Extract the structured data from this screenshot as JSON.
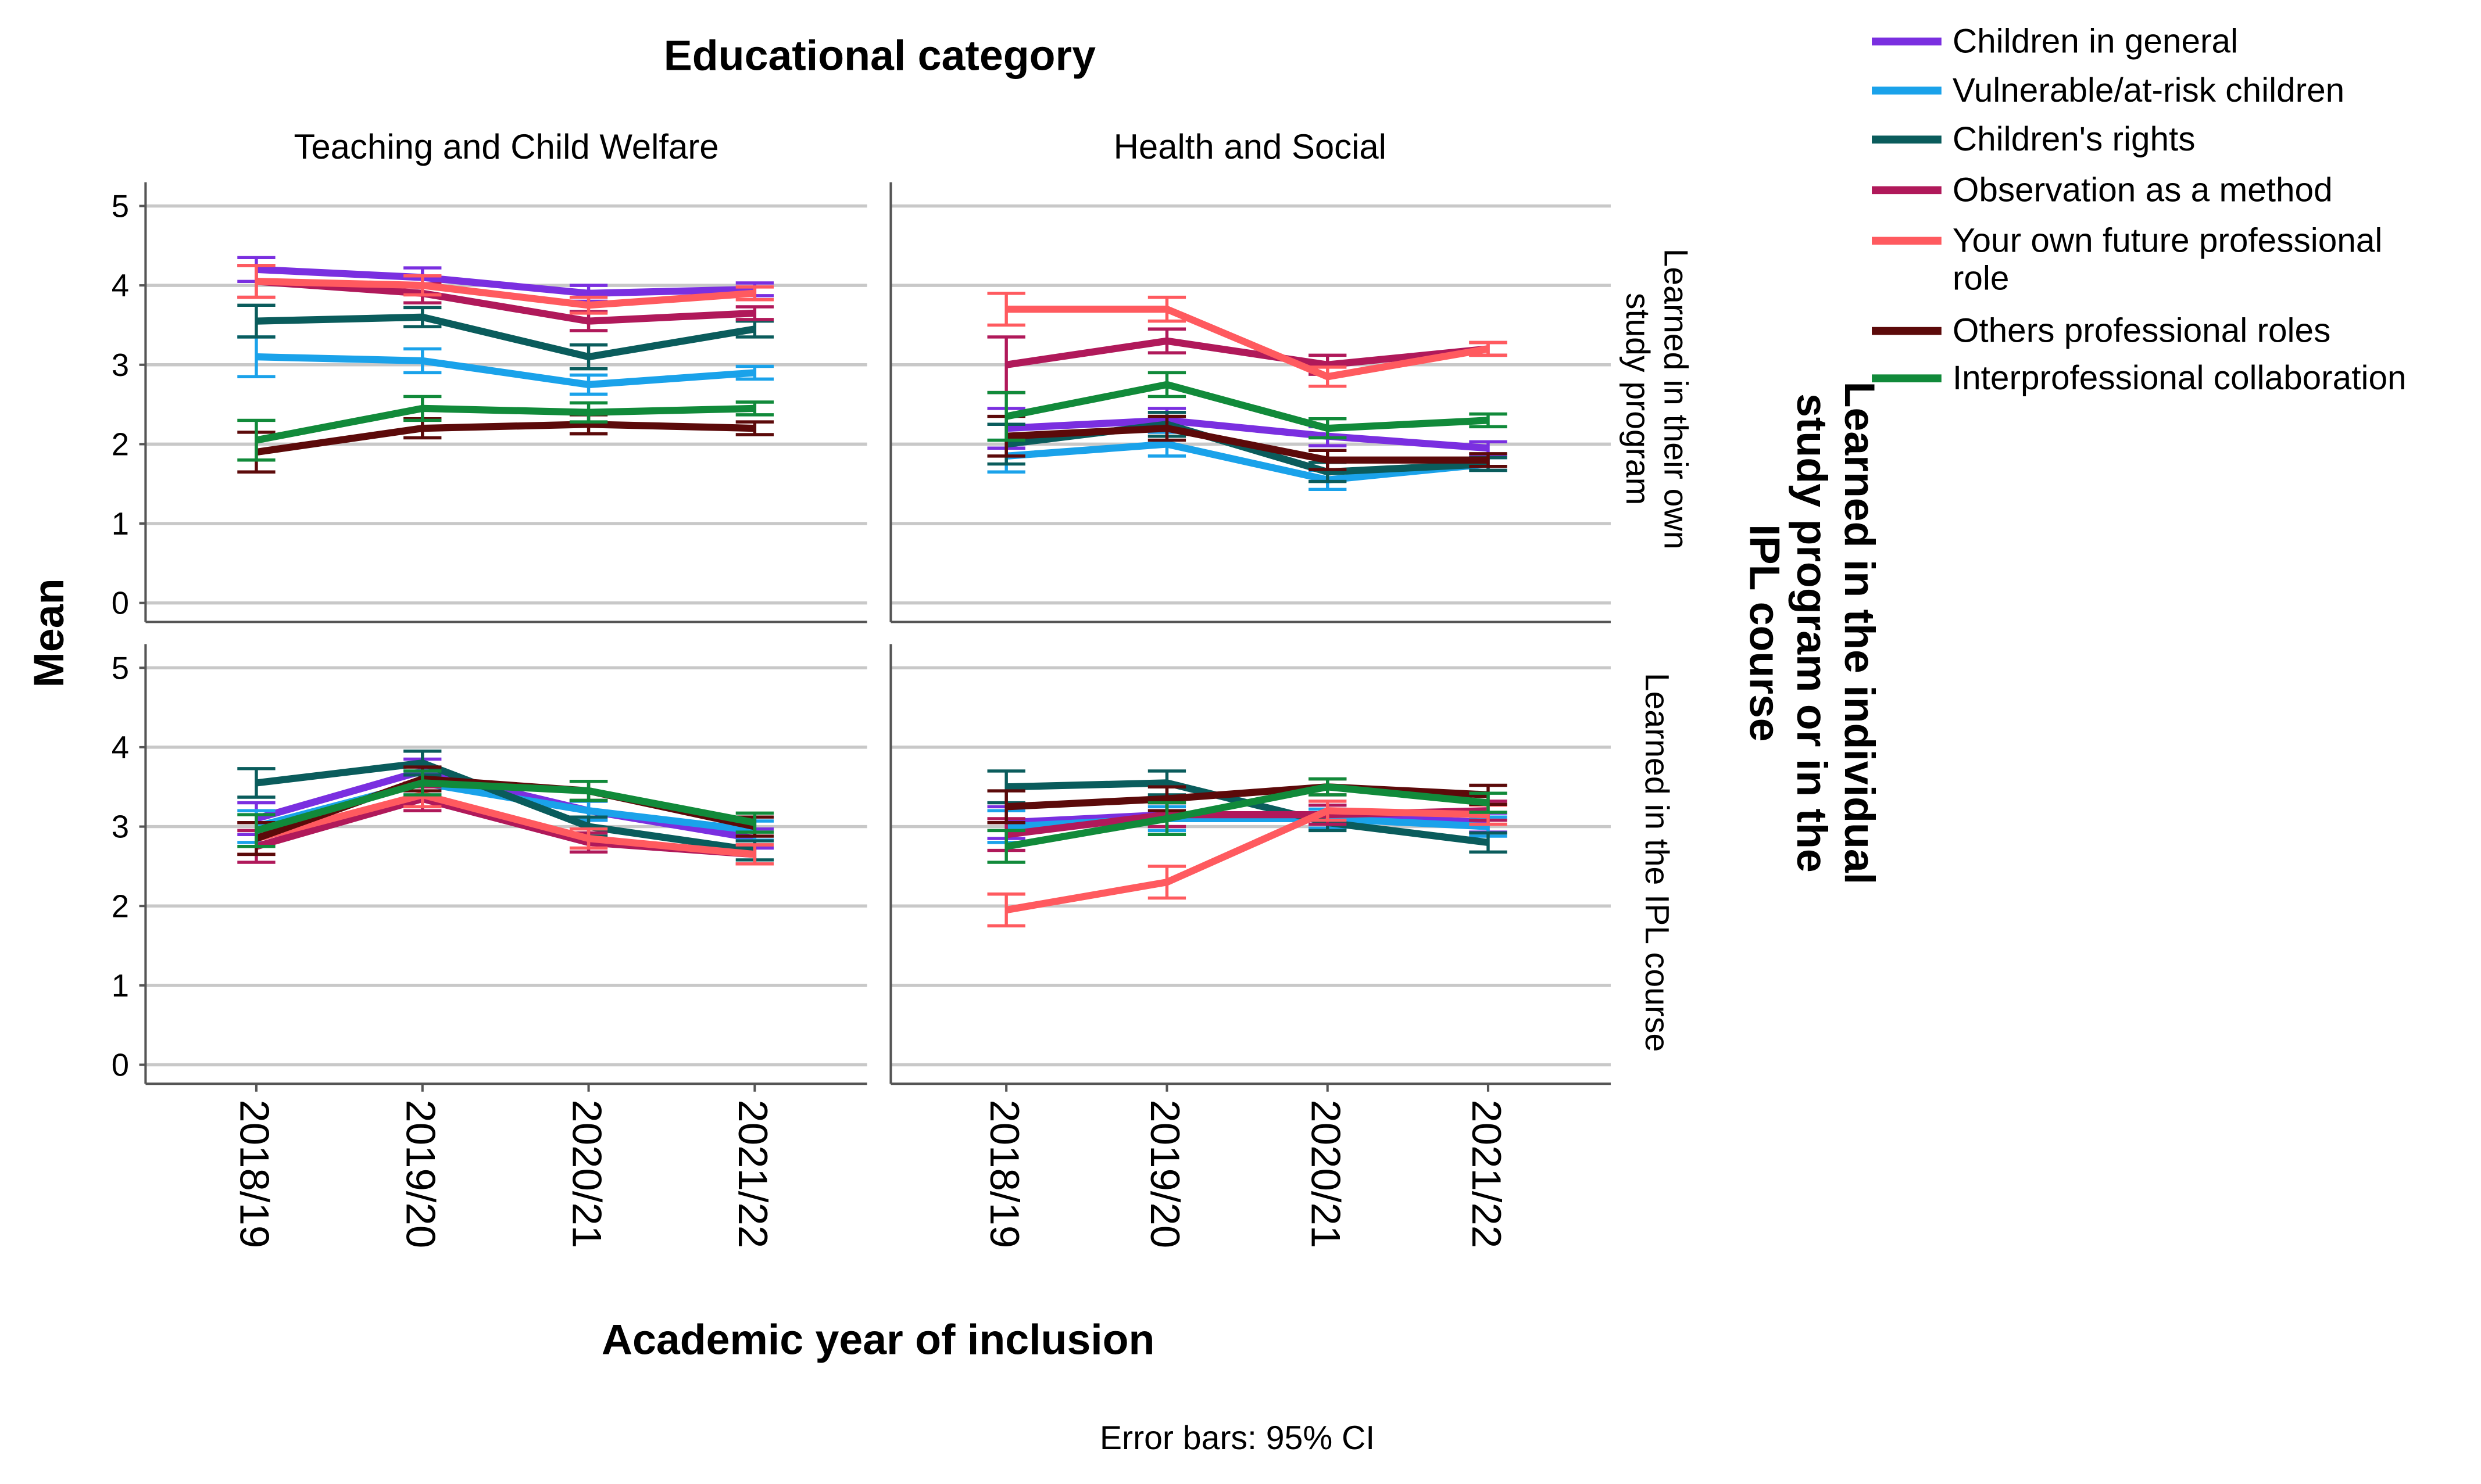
{
  "chart_data": {
    "type": "line",
    "title": "Educational category",
    "xlabel": "Academic year of inclusion",
    "ylabel": "Mean",
    "row_axis_title": "Learned in the individual study program or in the IPL course",
    "footnote": "Error bars: 95% CI",
    "ylim": [
      0,
      5
    ],
    "yticks": [
      0,
      1,
      2,
      3,
      4,
      5
    ],
    "grid": true,
    "legend_position": "top-right",
    "categories": [
      "2018/19",
      "2019/20",
      "2020/21",
      "2021/22"
    ],
    "columns": [
      "Teaching and Child Welfare",
      "Health and Social"
    ],
    "rows": [
      "Learned in their own study program",
      "Learned in the IPL course"
    ],
    "series": [
      {
        "name": "Children in general",
        "color": "#7a2fe0"
      },
      {
        "name": "Vulnerable/at-risk children",
        "color": "#1aa2ea"
      },
      {
        "name": "Children's rights",
        "color": "#0a5c5c"
      },
      {
        "name": "Observation as a method",
        "color": "#b0195a"
      },
      {
        "name": "Your own future professional role",
        "color": "#ff5a5f"
      },
      {
        "name": "Others professional roles",
        "color": "#5c0a0a"
      },
      {
        "name": "Interprofessional collaboration",
        "color": "#118a3a"
      }
    ],
    "panels": [
      {
        "row": 0,
        "col": 0,
        "data": [
          {
            "values": [
              4.2,
              4.1,
              3.9,
              3.95
            ],
            "ci": [
              0.15,
              0.12,
              0.1,
              0.08
            ]
          },
          {
            "values": [
              3.1,
              3.05,
              2.75,
              2.9
            ],
            "ci": [
              0.25,
              0.15,
              0.12,
              0.08
            ]
          },
          {
            "values": [
              3.55,
              3.6,
              3.1,
              3.45
            ],
            "ci": [
              0.2,
              0.12,
              0.15,
              0.1
            ]
          },
          {
            "values": [
              4.05,
              3.9,
              3.55,
              3.65
            ],
            "ci": [
              0.2,
              0.12,
              0.12,
              0.08
            ]
          },
          {
            "values": [
              4.05,
              4.0,
              3.75,
              3.9
            ],
            "ci": [
              0.2,
              0.12,
              0.1,
              0.08
            ]
          },
          {
            "values": [
              1.9,
              2.2,
              2.25,
              2.2
            ],
            "ci": [
              0.25,
              0.12,
              0.12,
              0.08
            ]
          },
          {
            "values": [
              2.05,
              2.45,
              2.4,
              2.45
            ],
            "ci": [
              0.25,
              0.15,
              0.12,
              0.08
            ]
          }
        ]
      },
      {
        "row": 0,
        "col": 1,
        "data": [
          {
            "values": [
              2.2,
              2.3,
              2.1,
              1.95
            ],
            "ci": [
              0.25,
              0.15,
              0.12,
              0.08
            ]
          },
          {
            "values": [
              1.85,
              2.0,
              1.55,
              1.75
            ],
            "ci": [
              0.2,
              0.15,
              0.12,
              0.08
            ]
          },
          {
            "values": [
              2.0,
              2.25,
              1.65,
              1.75
            ],
            "ci": [
              0.25,
              0.15,
              0.12,
              0.08
            ]
          },
          {
            "values": [
              3.0,
              3.3,
              3.0,
              3.2
            ],
            "ci": [
              0.35,
              0.15,
              0.12,
              0.08
            ]
          },
          {
            "values": [
              3.7,
              3.7,
              2.85,
              3.2
            ],
            "ci": [
              0.2,
              0.15,
              0.12,
              0.08
            ]
          },
          {
            "values": [
              2.1,
              2.2,
              1.8,
              1.8
            ],
            "ci": [
              0.25,
              0.15,
              0.12,
              0.08
            ]
          },
          {
            "values": [
              2.35,
              2.75,
              2.2,
              2.3
            ],
            "ci": [
              0.3,
              0.15,
              0.12,
              0.08
            ]
          }
        ]
      },
      {
        "row": 1,
        "col": 0,
        "data": [
          {
            "values": [
              3.1,
              3.7,
              3.2,
              2.85
            ],
            "ci": [
              0.2,
              0.15,
              0.12,
              0.12
            ]
          },
          {
            "values": [
              3.0,
              3.55,
              3.2,
              2.95
            ],
            "ci": [
              0.2,
              0.15,
              0.12,
              0.12
            ]
          },
          {
            "values": [
              3.55,
              3.8,
              3.0,
              2.7
            ],
            "ci": [
              0.18,
              0.15,
              0.12,
              0.12
            ]
          },
          {
            "values": [
              2.75,
              3.35,
              2.8,
              2.65
            ],
            "ci": [
              0.2,
              0.15,
              0.12,
              0.12
            ]
          },
          {
            "values": [
              2.85,
              3.4,
              2.85,
              2.65
            ],
            "ci": [
              0.2,
              0.15,
              0.12,
              0.12
            ]
          },
          {
            "values": [
              2.85,
              3.6,
              3.45,
              3.0
            ],
            "ci": [
              0.2,
              0.15,
              0.12,
              0.12
            ]
          },
          {
            "values": [
              2.95,
              3.55,
              3.45,
              3.05
            ],
            "ci": [
              0.2,
              0.15,
              0.12,
              0.12
            ]
          }
        ]
      },
      {
        "row": 1,
        "col": 1,
        "data": [
          {
            "values": [
              3.05,
              3.15,
              3.15,
              3.05
            ],
            "ci": [
              0.2,
              0.15,
              0.12,
              0.12
            ]
          },
          {
            "values": [
              3.0,
              3.1,
              3.1,
              3.0
            ],
            "ci": [
              0.2,
              0.15,
              0.12,
              0.12
            ]
          },
          {
            "values": [
              3.5,
              3.55,
              3.05,
              2.8
            ],
            "ci": [
              0.2,
              0.15,
              0.1,
              0.12
            ]
          },
          {
            "values": [
              2.9,
              3.15,
              3.15,
              3.2
            ],
            "ci": [
              0.2,
              0.15,
              0.12,
              0.12
            ]
          },
          {
            "values": [
              1.95,
              2.3,
              3.2,
              3.15
            ],
            "ci": [
              0.2,
              0.2,
              0.12,
              0.12
            ]
          },
          {
            "values": [
              3.25,
              3.35,
              3.5,
              3.4
            ],
            "ci": [
              0.2,
              0.15,
              0.1,
              0.12
            ]
          },
          {
            "values": [
              2.75,
              3.1,
              3.5,
              3.3
            ],
            "ci": [
              0.2,
              0.2,
              0.1,
              0.12
            ]
          }
        ]
      }
    ]
  }
}
